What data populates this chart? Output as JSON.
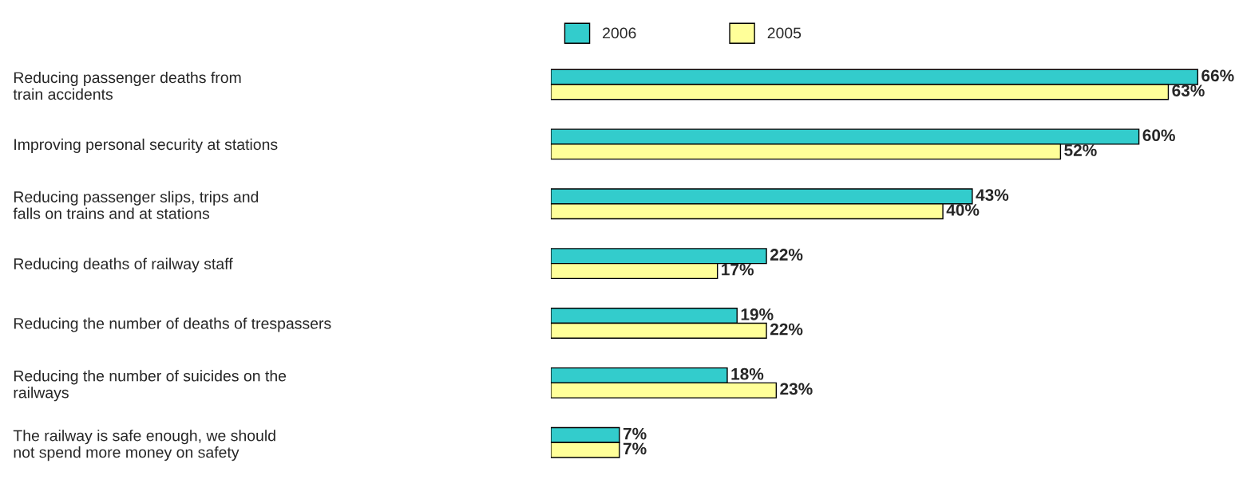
{
  "chart_data": {
    "type": "bar",
    "orientation": "horizontal",
    "legend": "top",
    "categories": [
      "Reducing passenger deaths from\ntrain accidents",
      "Improving personal security at stations",
      "Reducing passenger slips, trips and\nfalls on trains and at stations",
      "Reducing deaths of railway staff",
      "Reducing the number of deaths of trespassers",
      "Reducing the number of suicides on the\nrailways",
      "The railway is safe enough, we should\nnot spend more money on safety"
    ],
    "series": [
      {
        "name": "2006",
        "color": "#33cccc",
        "values": [
          66,
          60,
          43,
          22,
          19,
          18,
          7
        ],
        "value_labels": [
          "66%",
          "60%",
          "43%",
          "22%",
          "19%",
          "18%",
          "7%"
        ]
      },
      {
        "name": "2005",
        "color": "#ffff99",
        "values": [
          63,
          52,
          40,
          17,
          22,
          23,
          7
        ],
        "value_labels": [
          "63%",
          "52%",
          "40%",
          "17%",
          "22%",
          "23%",
          "7%"
        ]
      }
    ]
  }
}
